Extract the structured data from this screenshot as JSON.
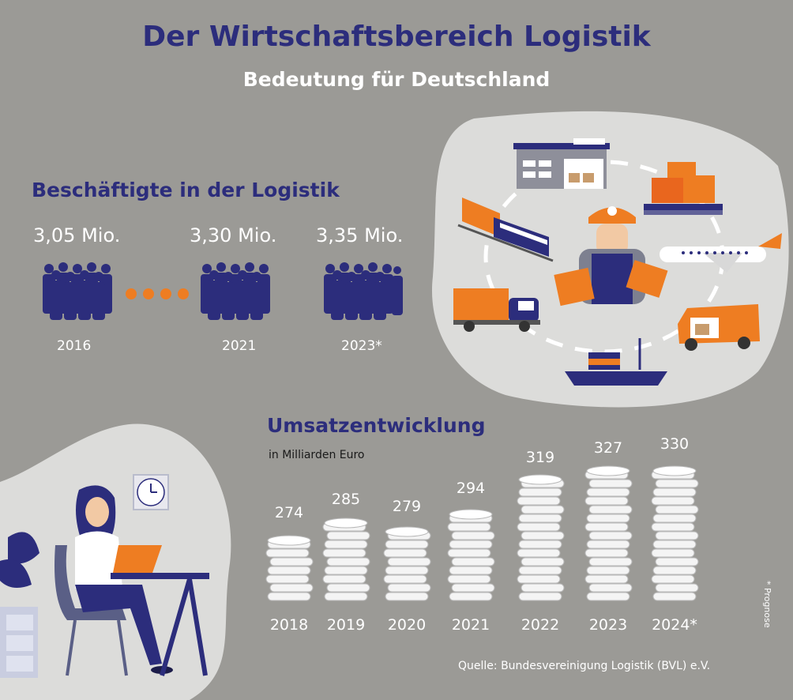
{
  "title": "Der Wirtschaftsbereich Logistik",
  "subtitle": "Bedeutung für Deutschland",
  "employment": {
    "heading": "Beschäftigte in der Logistik",
    "items": [
      {
        "value": "3,05 Mio.",
        "year": "2016"
      },
      {
        "value": "3,30 Mio.",
        "year": "2021"
      },
      {
        "value": "3,35 Mio.",
        "year": "2023*"
      }
    ]
  },
  "chart_data": {
    "type": "bar",
    "title": "Umsatzentwicklung",
    "ylabel": "in Milliarden Euro",
    "categories": [
      "2018",
      "2019",
      "2020",
      "2021",
      "2022",
      "2023",
      "2024*"
    ],
    "values": [
      274,
      285,
      279,
      294,
      319,
      327,
      330
    ],
    "ylim": [
      0,
      340
    ]
  },
  "footnote": "* Prognose",
  "source": "Quelle: Bundesvereinigung Logistik (BVL) e.V.",
  "colors": {
    "navy": "#2c2d7c",
    "orange": "#ee7d22",
    "background": "#9b9a96",
    "light_blob": "#dcdcda"
  },
  "icons": [
    "warehouse-icon",
    "freight-train-icon",
    "pallet-boxes-icon",
    "worker-icon",
    "airplane-icon",
    "truck-icon",
    "van-icon",
    "ship-icon",
    "woman-at-laptop-icon",
    "clock-icon",
    "plant-icon",
    "coin-stack-icon",
    "people-group-icon"
  ]
}
